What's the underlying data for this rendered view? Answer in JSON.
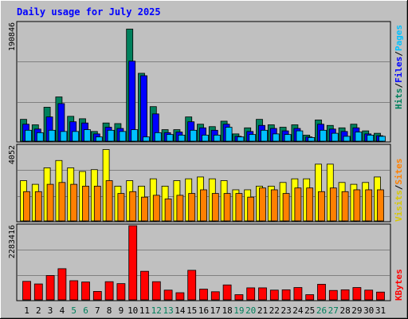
{
  "title": "Daily usage for July 2025",
  "colors": {
    "background": "#c0c0c0",
    "title": "#0000ff",
    "hits": "#00805c",
    "files": "#0000ff",
    "pages": "#00c0ff",
    "visits": "#ffff00",
    "sites": "#ff8000",
    "kbytes": "#ff0000",
    "weekend_label": "#00805c",
    "weekday_label": "#000000",
    "gridline": "#808080"
  },
  "legends": {
    "top": [
      {
        "text": "Pages",
        "color": "#00c0ff"
      },
      {
        "text": "/",
        "color": "#000000"
      },
      {
        "text": "Files",
        "color": "#0000ff"
      },
      {
        "text": "/",
        "color": "#000000"
      },
      {
        "text": "Hits",
        "color": "#00805c"
      }
    ],
    "middle": [
      {
        "text": "Sites",
        "color": "#ff8000"
      },
      {
        "text": "/",
        "color": "#000000"
      },
      {
        "text": "Visits",
        "color": "#d8c800"
      }
    ],
    "bottom": [
      {
        "text": "KBytes",
        "color": "#ff0000"
      }
    ]
  },
  "chart_data": [
    {
      "type": "bar",
      "title": "Daily usage for July 2025",
      "ymax_label": "190846",
      "ylim": [
        0,
        190846
      ],
      "categories": [
        "1",
        "2",
        "3",
        "4",
        "5",
        "6",
        "7",
        "8",
        "9",
        "10",
        "11",
        "12",
        "13",
        "14",
        "15",
        "16",
        "17",
        "18",
        "19",
        "20",
        "21",
        "22",
        "23",
        "24",
        "25",
        "26",
        "27",
        "28",
        "29",
        "30",
        "31"
      ],
      "weekend_days": [
        "5",
        "6",
        "12",
        "13",
        "19",
        "20",
        "26",
        "27"
      ],
      "grid": true,
      "series": [
        {
          "name": "Hits",
          "values": [
            36000,
            27000,
            56000,
            73000,
            41000,
            37000,
            16000,
            30000,
            29000,
            185000,
            112000,
            57000,
            19000,
            19000,
            40000,
            28000,
            24000,
            33000,
            12000,
            22000,
            36000,
            27000,
            23000,
            27000,
            10000,
            35000,
            26000,
            22000,
            28000,
            17000,
            13000
          ]
        },
        {
          "name": "Files",
          "values": [
            28000,
            20000,
            40000,
            62000,
            32000,
            30000,
            12000,
            23000,
            21000,
            132000,
            108000,
            45000,
            14000,
            15000,
            32000,
            22000,
            18000,
            28000,
            8000,
            16000,
            26000,
            21000,
            17000,
            21000,
            7000,
            28000,
            20000,
            16000,
            22000,
            12000,
            9000
          ]
        },
        {
          "name": "Pages",
          "values": [
            18000,
            14000,
            18000,
            16000,
            16000,
            19000,
            7000,
            18000,
            16000,
            19000,
            7000,
            14000,
            11000,
            10000,
            18000,
            10000,
            10000,
            23000,
            7000,
            11000,
            18000,
            12000,
            11000,
            17000,
            6000,
            18000,
            13000,
            8000,
            15000,
            10000,
            8000
          ]
        }
      ]
    },
    {
      "type": "bar",
      "ymax_label": "4052",
      "ylim": [
        0,
        4052
      ],
      "categories": [
        "1",
        "2",
        "3",
        "4",
        "5",
        "6",
        "7",
        "8",
        "9",
        "10",
        "11",
        "12",
        "13",
        "14",
        "15",
        "16",
        "17",
        "18",
        "19",
        "20",
        "21",
        "22",
        "23",
        "24",
        "25",
        "26",
        "27",
        "28",
        "29",
        "30",
        "31"
      ],
      "grid": true,
      "series": [
        {
          "name": "Visits",
          "values": [
            2200,
            2000,
            2900,
            3300,
            2900,
            2700,
            2800,
            3900,
            1900,
            2200,
            1900,
            2300,
            1900,
            2200,
            2300,
            2400,
            2300,
            2200,
            1700,
            1700,
            1900,
            1900,
            2100,
            2300,
            2300,
            3100,
            3100,
            2100,
            2000,
            2100,
            2400
          ]
        },
        {
          "name": "Sites",
          "values": [
            1600,
            1600,
            2000,
            2100,
            2000,
            1900,
            1900,
            2200,
            1500,
            1600,
            1300,
            1400,
            1200,
            1400,
            1500,
            1700,
            1500,
            1500,
            1500,
            1300,
            1800,
            1700,
            1500,
            1800,
            1800,
            1600,
            1800,
            1600,
            1700,
            1700,
            1700
          ]
        }
      ]
    },
    {
      "type": "bar",
      "ymax_label": "2283416",
      "ylim": [
        0,
        2283416
      ],
      "categories": [
        "1",
        "2",
        "3",
        "4",
        "5",
        "6",
        "7",
        "8",
        "9",
        "10",
        "11",
        "12",
        "13",
        "14",
        "15",
        "16",
        "17",
        "18",
        "19",
        "20",
        "21",
        "22",
        "23",
        "24",
        "25",
        "26",
        "27",
        "28",
        "29",
        "30",
        "31"
      ],
      "grid": true,
      "series": [
        {
          "name": "KBytes",
          "values": [
            570000,
            490000,
            750000,
            960000,
            590000,
            550000,
            260000,
            560000,
            500000,
            2283416,
            880000,
            560000,
            300000,
            220000,
            910000,
            330000,
            250000,
            460000,
            160000,
            370000,
            370000,
            300000,
            310000,
            380000,
            160000,
            480000,
            290000,
            310000,
            380000,
            300000,
            240000
          ]
        }
      ]
    }
  ]
}
